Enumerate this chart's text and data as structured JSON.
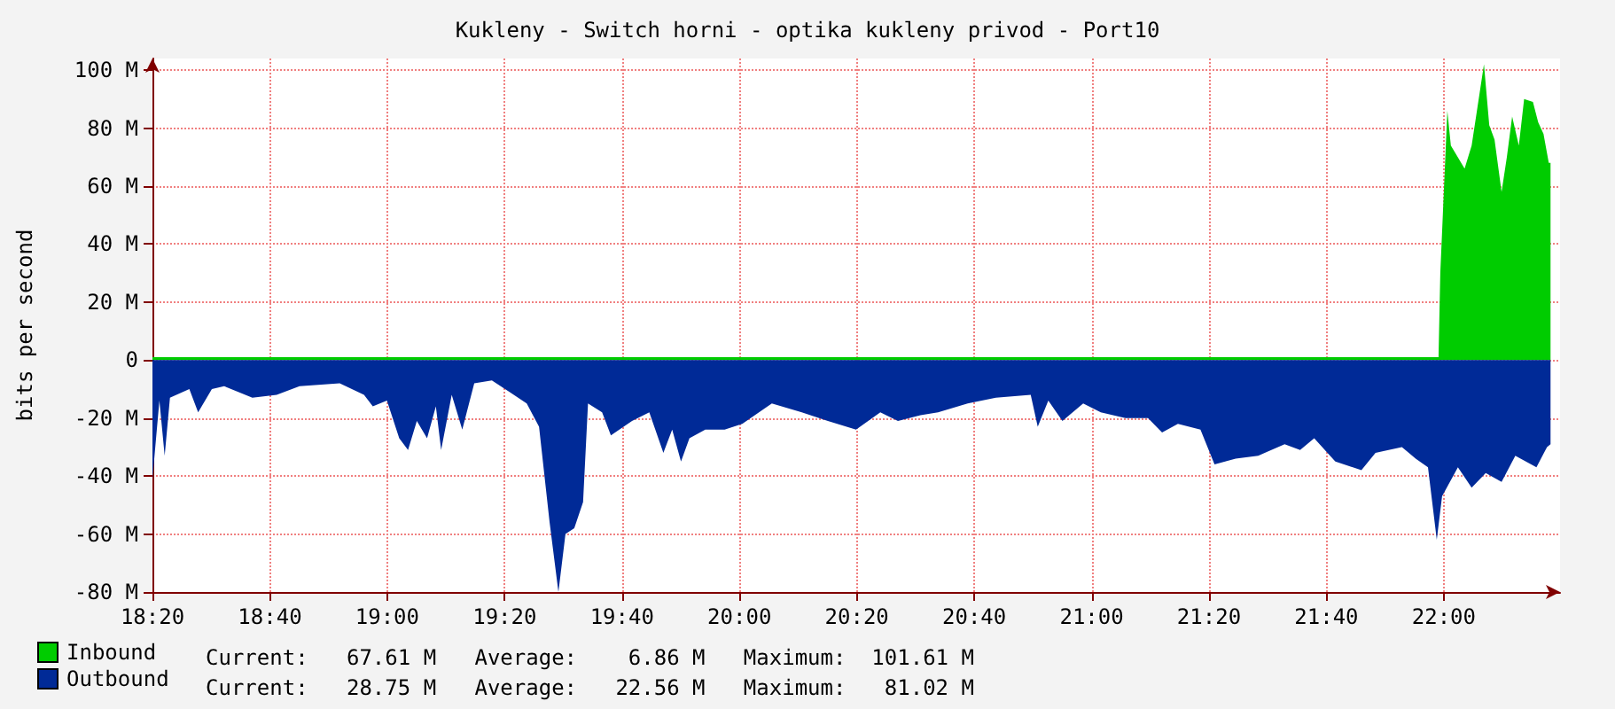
{
  "chart_data": {
    "type": "area",
    "title": "Kukleny - Switch horni - optika kukleny privod - Port10",
    "ylabel": "bits per second",
    "xlim": [
      18.3333,
      22.33
    ],
    "xticks": [
      {
        "value": 18.3333,
        "label": "18:20"
      },
      {
        "value": 18.6667,
        "label": "18:40"
      },
      {
        "value": 19,
        "label": "19:00"
      },
      {
        "value": 19.3333,
        "label": "19:20"
      },
      {
        "value": 19.6667,
        "label": "19:40"
      },
      {
        "value": 20,
        "label": "20:00"
      },
      {
        "value": 20.3333,
        "label": "20:20"
      },
      {
        "value": 20.6667,
        "label": "20:40"
      },
      {
        "value": 21,
        "label": "21:00"
      },
      {
        "value": 21.3333,
        "label": "21:20"
      },
      {
        "value": 21.6667,
        "label": "21:40"
      },
      {
        "value": 22,
        "label": "22:00"
      }
    ],
    "ylim": [
      -80,
      104
    ],
    "yticks": [
      {
        "value": -80,
        "label": "-80 M"
      },
      {
        "value": -60,
        "label": "-60 M"
      },
      {
        "value": -40,
        "label": "-40 M"
      },
      {
        "value": -20,
        "label": "-20 M"
      },
      0,
      {
        "value": 20,
        "label": "20 M"
      },
      {
        "value": 40,
        "label": "40 M"
      },
      {
        "value": 60,
        "label": "60 M"
      },
      {
        "value": 80,
        "label": "80 M"
      },
      {
        "value": 100,
        "label": "100 M"
      }
    ],
    "grid": true,
    "legend": "bottom left",
    "series": [
      {
        "name": "Inbound",
        "color": "#00cc00",
        "x": [
          18.3333,
          19.918,
          21.409,
          21.985,
          21.99,
          22.01,
          22.02,
          22.059,
          22.079,
          22.094,
          22.114,
          22.129,
          22.144,
          22.164,
          22.179,
          22.194,
          22.213,
          22.228,
          22.253,
          22.268,
          22.283,
          22.298,
          22.303
        ],
        "values": [
          1,
          1,
          1,
          1,
          30,
          86,
          74,
          66,
          74,
          86,
          102,
          81,
          76,
          58,
          70,
          84,
          74,
          90,
          89,
          82,
          78,
          68,
          68
        ]
      },
      {
        "name": "Outbound",
        "color": "#002a97",
        "x": [
          18.3333,
          18.353,
          18.368,
          18.383,
          18.438,
          18.463,
          18.502,
          18.537,
          18.617,
          18.686,
          18.751,
          18.865,
          18.934,
          18.959,
          18.999,
          19.034,
          19.059,
          19.084,
          19.113,
          19.138,
          19.153,
          19.183,
          19.213,
          19.247,
          19.297,
          19.347,
          19.396,
          19.431,
          19.461,
          19.486,
          19.506,
          19.531,
          19.556,
          19.57,
          19.61,
          19.635,
          19.695,
          19.744,
          19.784,
          19.809,
          19.834,
          19.858,
          19.903,
          19.958,
          20.008,
          20.092,
          20.177,
          20.251,
          20.331,
          20.4,
          20.45,
          20.514,
          20.564,
          20.648,
          20.728,
          20.827,
          20.847,
          20.877,
          20.917,
          20.976,
          21.026,
          21.096,
          21.16,
          21.2,
          21.245,
          21.309,
          21.349,
          21.409,
          21.473,
          21.548,
          21.592,
          21.632,
          21.692,
          21.766,
          21.806,
          21.881,
          21.92,
          21.955,
          21.98,
          21.995,
          22.04,
          22.079,
          22.119,
          22.164,
          22.203,
          22.263,
          22.293,
          22.303
        ],
        "values": [
          -41,
          -14,
          -33,
          -13,
          -10,
          -18,
          -10,
          -9,
          -13,
          -12,
          -9,
          -8,
          -12,
          -16,
          -14,
          -27,
          -31,
          -21,
          -27,
          -16,
          -31,
          -12,
          -24,
          -8,
          -7,
          -11,
          -15,
          -23,
          -56,
          -80,
          -60,
          -58,
          -49,
          -15,
          -18,
          -26,
          -21,
          -18,
          -32,
          -24,
          -35,
          -27,
          -24,
          -24,
          -22,
          -15,
          -18,
          -21,
          -24,
          -18,
          -21,
          -19,
          -18,
          -15,
          -13,
          -12,
          -23,
          -14,
          -21,
          -15,
          -18,
          -20,
          -20,
          -25,
          -22,
          -24,
          -36,
          -34,
          -33,
          -29,
          -31,
          -27,
          -35,
          -38,
          -32,
          -30,
          -34,
          -37,
          -62,
          -47,
          -37,
          -44,
          -39,
          -42,
          -33,
          -37,
          -30,
          -29
        ]
      }
    ],
    "annotations": [
      "Current:   67.61 M   Average:    6.86 M   Maximum:  101.61 M",
      "Current:   28.75 M   Average:   22.56 M   Maximum:   81.02 M"
    ]
  }
}
